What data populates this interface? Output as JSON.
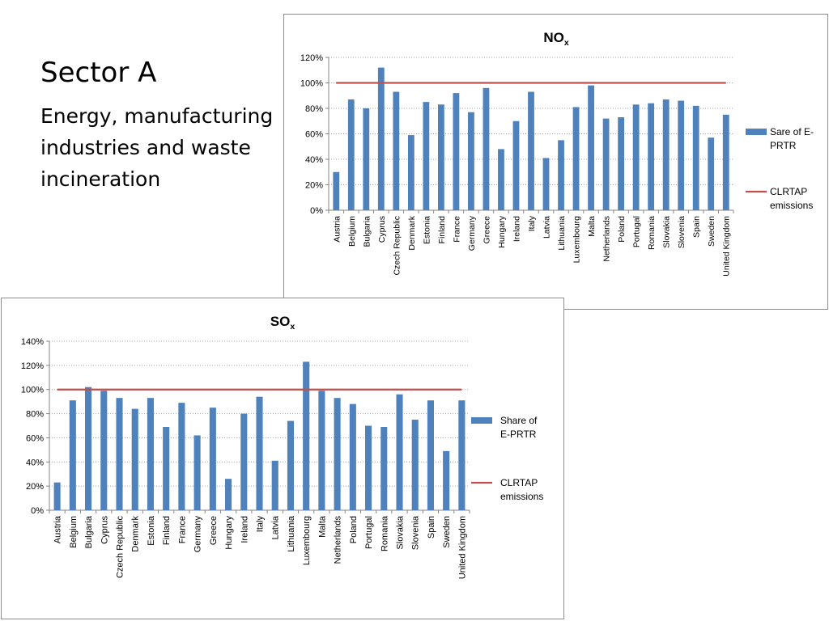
{
  "slide": {
    "title": "Sector A",
    "subtitle": "Energy, manufacturing industries and waste incineration"
  },
  "colors": {
    "bar": "#4f81bd",
    "line": "#c0504d",
    "grid": "#a6a6a6",
    "axis": "#868686"
  },
  "chart_data": [
    {
      "id": "nox",
      "type": "bar",
      "title": "NO",
      "title_subscript": "x",
      "categories": [
        "Austria",
        "Belgium",
        "Bulgaria",
        "Cyprus",
        "Czech Republic",
        "Denmark",
        "Estonia",
        "Finland",
        "France",
        "Germany",
        "Greece",
        "Hungary",
        "Ireland",
        "Italy",
        "Latvia",
        "Lithuania",
        "Luxembourg",
        "Malta",
        "Netherlands",
        "Poland",
        "Portugal",
        "Romania",
        "Slovakia",
        "Slovenia",
        "Spain",
        "Sweden",
        "United Kingdom"
      ],
      "series": [
        {
          "name": "Sare of E-PRTR",
          "legend_lines": [
            "Sare of E-",
            "PRTR"
          ],
          "kind": "bar",
          "values": [
            30,
            87,
            80,
            112,
            93,
            59,
            85,
            83,
            92,
            77,
            96,
            48,
            70,
            93,
            41,
            55,
            81,
            98,
            72,
            73,
            83,
            84,
            87,
            86,
            82,
            57,
            75
          ]
        },
        {
          "name": "CLRTAP emissions",
          "legend_lines": [
            "CLRTAP",
            "emissions"
          ],
          "kind": "line",
          "value": 100
        }
      ],
      "ylim": [
        0,
        120
      ],
      "yticks": [
        0,
        20,
        40,
        60,
        80,
        100,
        120
      ],
      "ytick_labels": [
        "0%",
        "20%",
        "40%",
        "60%",
        "80%",
        "100%",
        "120%"
      ],
      "grid": true,
      "legend_position": "right"
    },
    {
      "id": "sox",
      "type": "bar",
      "title": "SO",
      "title_subscript": "x",
      "categories": [
        "Austria",
        "Belgium",
        "Bulgaria",
        "Cyprus",
        "Czech Republic",
        "Denmark",
        "Estonia",
        "Finland",
        "France",
        "Germany",
        "Greece",
        "Hungary",
        "Ireland",
        "Italy",
        "Latvia",
        "Lithuania",
        "Luxembourg",
        "Malta",
        "Netherlands",
        "Poland",
        "Portugal",
        "Romania",
        "Slovakia",
        "Slovenia",
        "Spain",
        "Sweden",
        "United Kingdom"
      ],
      "series": [
        {
          "name": "Share of E-PRTR",
          "legend_lines": [
            "Share of",
            "E-PRTR"
          ],
          "kind": "bar",
          "values": [
            23,
            91,
            102,
            99,
            93,
            84,
            93,
            69,
            89,
            62,
            85,
            26,
            80,
            94,
            41,
            74,
            123,
            99,
            93,
            88,
            70,
            69,
            96,
            75,
            91,
            49,
            91
          ]
        },
        {
          "name": "CLRTAP emissions",
          "legend_lines": [
            "CLRTAP",
            "emissions"
          ],
          "kind": "line",
          "value": 100
        }
      ],
      "ylim": [
        0,
        140
      ],
      "yticks": [
        0,
        20,
        40,
        60,
        80,
        100,
        120,
        140
      ],
      "ytick_labels": [
        "0%",
        "20%",
        "40%",
        "60%",
        "80%",
        "100%",
        "120%",
        "140%"
      ],
      "grid": true,
      "legend_position": "right"
    }
  ]
}
